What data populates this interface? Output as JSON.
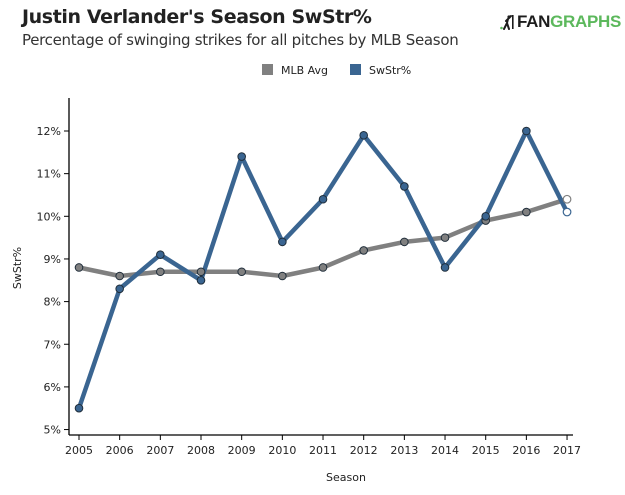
{
  "header": {
    "title": "Justin Verlander's Season SwStr%",
    "subtitle": "Percentage of swinging strikes for all pitches by MLB Season",
    "logo_text_dark": "FAN",
    "logo_text_green": "GRAPHS",
    "logo_icon": "fangraphs-batter-icon"
  },
  "colors": {
    "mlb_avg": "#808080",
    "swstr": "#3a6591",
    "axis": "#000000",
    "logo_green": "#5cb85c"
  },
  "chart_data": {
    "type": "line",
    "title": "Justin Verlander's Season SwStr%",
    "subtitle": "Percentage of swinging strikes for all pitches by MLB Season",
    "xlabel": "Season",
    "ylabel": "SwStr%",
    "x": [
      2005,
      2006,
      2007,
      2008,
      2009,
      2010,
      2011,
      2012,
      2013,
      2014,
      2015,
      2016,
      2017
    ],
    "x_tick_labels": [
      "2005",
      "2006",
      "2007",
      "2008",
      "2009",
      "2010",
      "2011",
      "2012",
      "2013",
      "2014",
      "2015",
      "2016",
      "2017"
    ],
    "ylim": [
      4.85,
      13.0
    ],
    "y_ticks": [
      5,
      6,
      7,
      8,
      9,
      10,
      11,
      12
    ],
    "y_tick_labels": [
      "5%",
      "6%",
      "7%",
      "8%",
      "9%",
      "10%",
      "11%",
      "12%"
    ],
    "grid": false,
    "legend_position": "top-center",
    "series": [
      {
        "name": "MLB Avg",
        "color": "#808080",
        "values": [
          8.8,
          8.6,
          8.7,
          8.7,
          8.7,
          8.6,
          8.8,
          9.2,
          9.4,
          9.5,
          9.9,
          10.1,
          10.4
        ],
        "hollow_last_point": true
      },
      {
        "name": "SwStr%",
        "color": "#3a6591",
        "values": [
          5.5,
          8.3,
          9.1,
          8.5,
          11.4,
          9.4,
          10.4,
          11.9,
          10.7,
          8.8,
          10.0,
          12.0,
          10.1
        ],
        "hollow_last_point": true
      }
    ]
  }
}
